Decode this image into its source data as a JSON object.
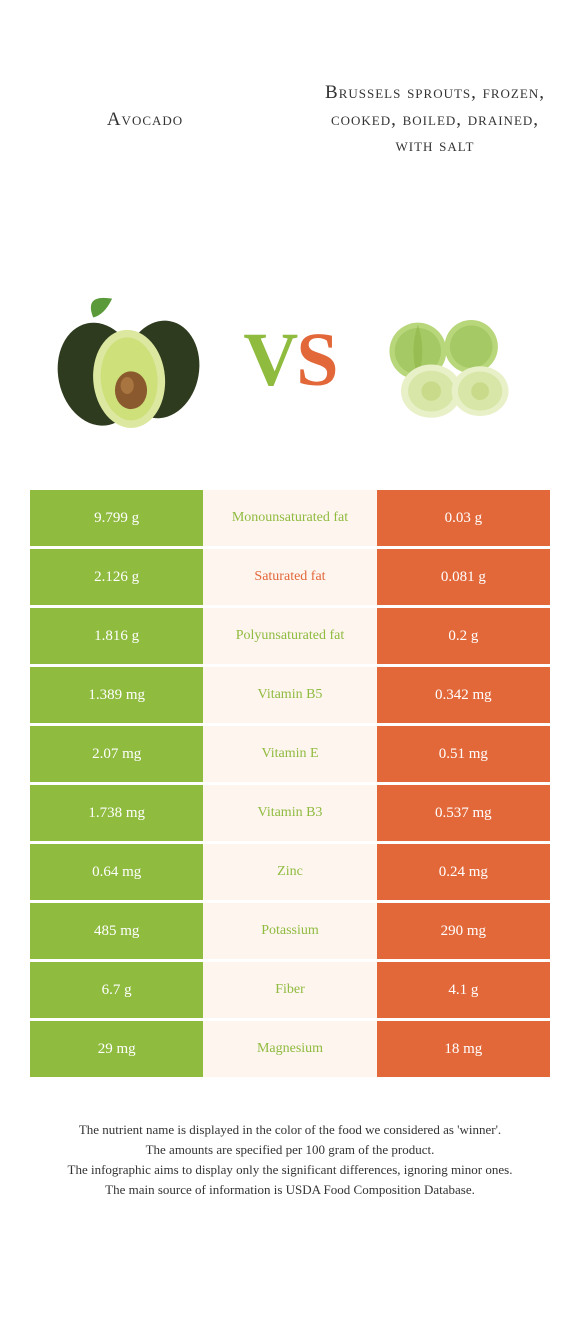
{
  "foods": {
    "left": {
      "title": "Avocado"
    },
    "right": {
      "title": "Brussels sprouts, frozen, cooked, boiled, drained, with salt"
    }
  },
  "colors": {
    "left": "#8fbb3f",
    "right": "#e2683a",
    "mid_bg": "#fef5ef"
  },
  "vs": {
    "v": "V",
    "s": "S"
  },
  "rows": [
    {
      "left": "9.799 g",
      "nutrient": "Monounsaturated fat",
      "right": "0.03 g",
      "winner": "left"
    },
    {
      "left": "2.126 g",
      "nutrient": "Saturated fat",
      "right": "0.081 g",
      "winner": "right"
    },
    {
      "left": "1.816 g",
      "nutrient": "Polyunsaturated fat",
      "right": "0.2 g",
      "winner": "left"
    },
    {
      "left": "1.389 mg",
      "nutrient": "Vitamin B5",
      "right": "0.342 mg",
      "winner": "left"
    },
    {
      "left": "2.07 mg",
      "nutrient": "Vitamin E",
      "right": "0.51 mg",
      "winner": "left"
    },
    {
      "left": "1.738 mg",
      "nutrient": "Vitamin B3",
      "right": "0.537 mg",
      "winner": "left"
    },
    {
      "left": "0.64 mg",
      "nutrient": "Zinc",
      "right": "0.24 mg",
      "winner": "left"
    },
    {
      "left": "485 mg",
      "nutrient": "Potassium",
      "right": "290 mg",
      "winner": "left"
    },
    {
      "left": "6.7 g",
      "nutrient": "Fiber",
      "right": "4.1 g",
      "winner": "left"
    },
    {
      "left": "29 mg",
      "nutrient": "Magnesium",
      "right": "18 mg",
      "winner": "left"
    }
  ],
  "footer": {
    "line1": "The nutrient name is displayed in the color of the food we considered as 'winner'.",
    "line2": "The amounts are specified per 100 gram of the product.",
    "line3": "The infographic aims to display only the significant differences, ignoring minor ones.",
    "line4": "The main source of information is USDA Food Composition Database."
  }
}
